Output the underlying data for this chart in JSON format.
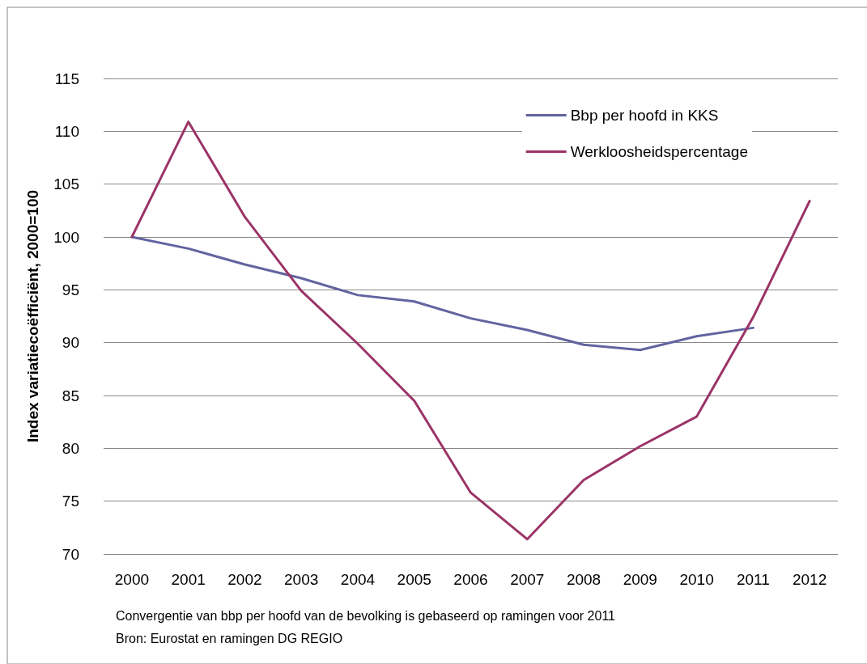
{
  "chart_data": {
    "type": "line",
    "ylabel": "Index variatiecoëfficiënt, 2000=100",
    "categories": [
      "2000",
      "2001",
      "2002",
      "2003",
      "2004",
      "2005",
      "2006",
      "2007",
      "2008",
      "2009",
      "2010",
      "2011",
      "2012"
    ],
    "series": [
      {
        "name": "Bbp per hoofd in KKS",
        "color": "#6264a0",
        "values": [
          100,
          98.9,
          97.4,
          96.1,
          94.5,
          93.9,
          92.3,
          91.2,
          89.8,
          89.3,
          90.6,
          91.4,
          null
        ]
      },
      {
        "name": "Werkloosheidspercentage",
        "color": "#9b3466",
        "values": [
          100,
          110.9,
          101.9,
          94.9,
          89.9,
          84.5,
          75.8,
          71.4,
          77.0,
          80.2,
          83.0,
          92.4,
          103.4
        ]
      }
    ],
    "ylim": [
      70,
      115
    ],
    "yticks": [
      70,
      75,
      80,
      85,
      90,
      95,
      100,
      105,
      110,
      115
    ],
    "grid": "y",
    "legend": "top right",
    "marker": "none",
    "line_style": "solid",
    "annotations": [
      "Convergentie van bbp per hoofd van de bevolking is gebaseerd op ramingen voor 2011",
      "Bron: Eurostat en ramingen DG REGIO"
    ]
  }
}
